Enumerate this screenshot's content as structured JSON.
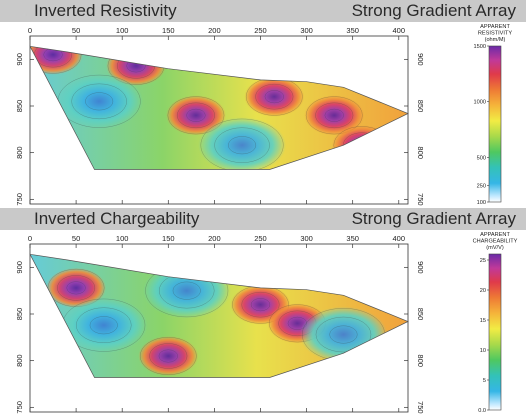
{
  "panels": [
    {
      "id": "resistivity",
      "title": "Inverted Resistivity",
      "subtitle": "Strong Gradient Array",
      "legend_title": [
        "APPARENT",
        "RESISTIVITY",
        "(ohm/M)"
      ],
      "colorbar_ticks": [
        {
          "label": "1500",
          "v": 1500
        },
        {
          "label": "1000",
          "v": 1000
        },
        {
          "label": "500",
          "v": 500
        },
        {
          "label": "250",
          "v": 250
        },
        {
          "label": "100",
          "v": 100
        }
      ],
      "colorbar_range": [
        100,
        1500
      ]
    },
    {
      "id": "chargeability",
      "title": "Inverted Chargeability",
      "subtitle": "Strong Gradient Array",
      "legend_title": [
        "APPARENT",
        "CHARGEABILITY",
        "(mV/V)"
      ],
      "colorbar_ticks": [
        {
          "label": "25",
          "v": 25
        },
        {
          "label": "20",
          "v": 20
        },
        {
          "label": "15",
          "v": 15
        },
        {
          "label": "10",
          "v": 10
        },
        {
          "label": "5",
          "v": 5
        },
        {
          "label": "0.0",
          "v": 0
        }
      ],
      "colorbar_range": [
        0,
        26
      ]
    }
  ],
  "chart_data": [
    {
      "type": "heatmap",
      "title": "Inverted Resistivity",
      "subtitle": "Strong Gradient Array",
      "x_ticks": [
        "0",
        "50",
        "100",
        "150",
        "200",
        "250",
        "300",
        "350",
        "400"
      ],
      "y_ticks": [
        "900",
        "850",
        "800",
        "750"
      ],
      "xlim": [
        0,
        410
      ],
      "ylim": [
        745,
        925
      ],
      "colorbar_label": "APPARENT RESISTIVITY (ohm/M)",
      "colorbar_ticks": [
        "1500",
        "1000",
        "500",
        "250",
        "100"
      ],
      "section_outline": [
        [
          0,
          914
        ],
        [
          40,
          908
        ],
        [
          150,
          890
        ],
        [
          250,
          878
        ],
        [
          300,
          876
        ],
        [
          340,
          870
        ],
        [
          410,
          842
        ],
        [
          340,
          808
        ],
        [
          260,
          782
        ],
        [
          150,
          782
        ],
        [
          70,
          782
        ]
      ],
      "anomalies": [
        {
          "x": 25,
          "y": 905,
          "level": "high"
        },
        {
          "x": 115,
          "y": 893,
          "level": "high"
        },
        {
          "x": 180,
          "y": 840,
          "level": "high"
        },
        {
          "x": 265,
          "y": 860,
          "level": "high"
        },
        {
          "x": 330,
          "y": 840,
          "level": "high"
        },
        {
          "x": 360,
          "y": 808,
          "level": "high"
        },
        {
          "x": 75,
          "y": 855,
          "level": "low"
        },
        {
          "x": 230,
          "y": 808,
          "level": "low"
        }
      ]
    },
    {
      "type": "heatmap",
      "title": "Inverted Chargeability",
      "subtitle": "Strong Gradient Array",
      "x_ticks": [
        "0",
        "50",
        "100",
        "150",
        "200",
        "250",
        "300",
        "350",
        "400"
      ],
      "y_ticks": [
        "900",
        "850",
        "800",
        "750"
      ],
      "xlim": [
        0,
        410
      ],
      "ylim": [
        745,
        925
      ],
      "colorbar_label": "APPARENT CHARGEABILITY (mV/V)",
      "colorbar_ticks": [
        "25",
        "20",
        "15",
        "10",
        "5",
        "0.0"
      ],
      "section_outline": [
        [
          0,
          914
        ],
        [
          40,
          908
        ],
        [
          150,
          890
        ],
        [
          250,
          878
        ],
        [
          300,
          876
        ],
        [
          340,
          870
        ],
        [
          410,
          842
        ],
        [
          340,
          808
        ],
        [
          260,
          782
        ],
        [
          150,
          782
        ],
        [
          70,
          782
        ]
      ],
      "anomalies": [
        {
          "x": 50,
          "y": 878,
          "level": "high"
        },
        {
          "x": 150,
          "y": 805,
          "level": "high"
        },
        {
          "x": 250,
          "y": 860,
          "level": "high"
        },
        {
          "x": 290,
          "y": 840,
          "level": "high"
        },
        {
          "x": 80,
          "y": 838,
          "level": "low"
        },
        {
          "x": 170,
          "y": 875,
          "level": "low"
        },
        {
          "x": 340,
          "y": 828,
          "level": "low"
        }
      ]
    }
  ]
}
